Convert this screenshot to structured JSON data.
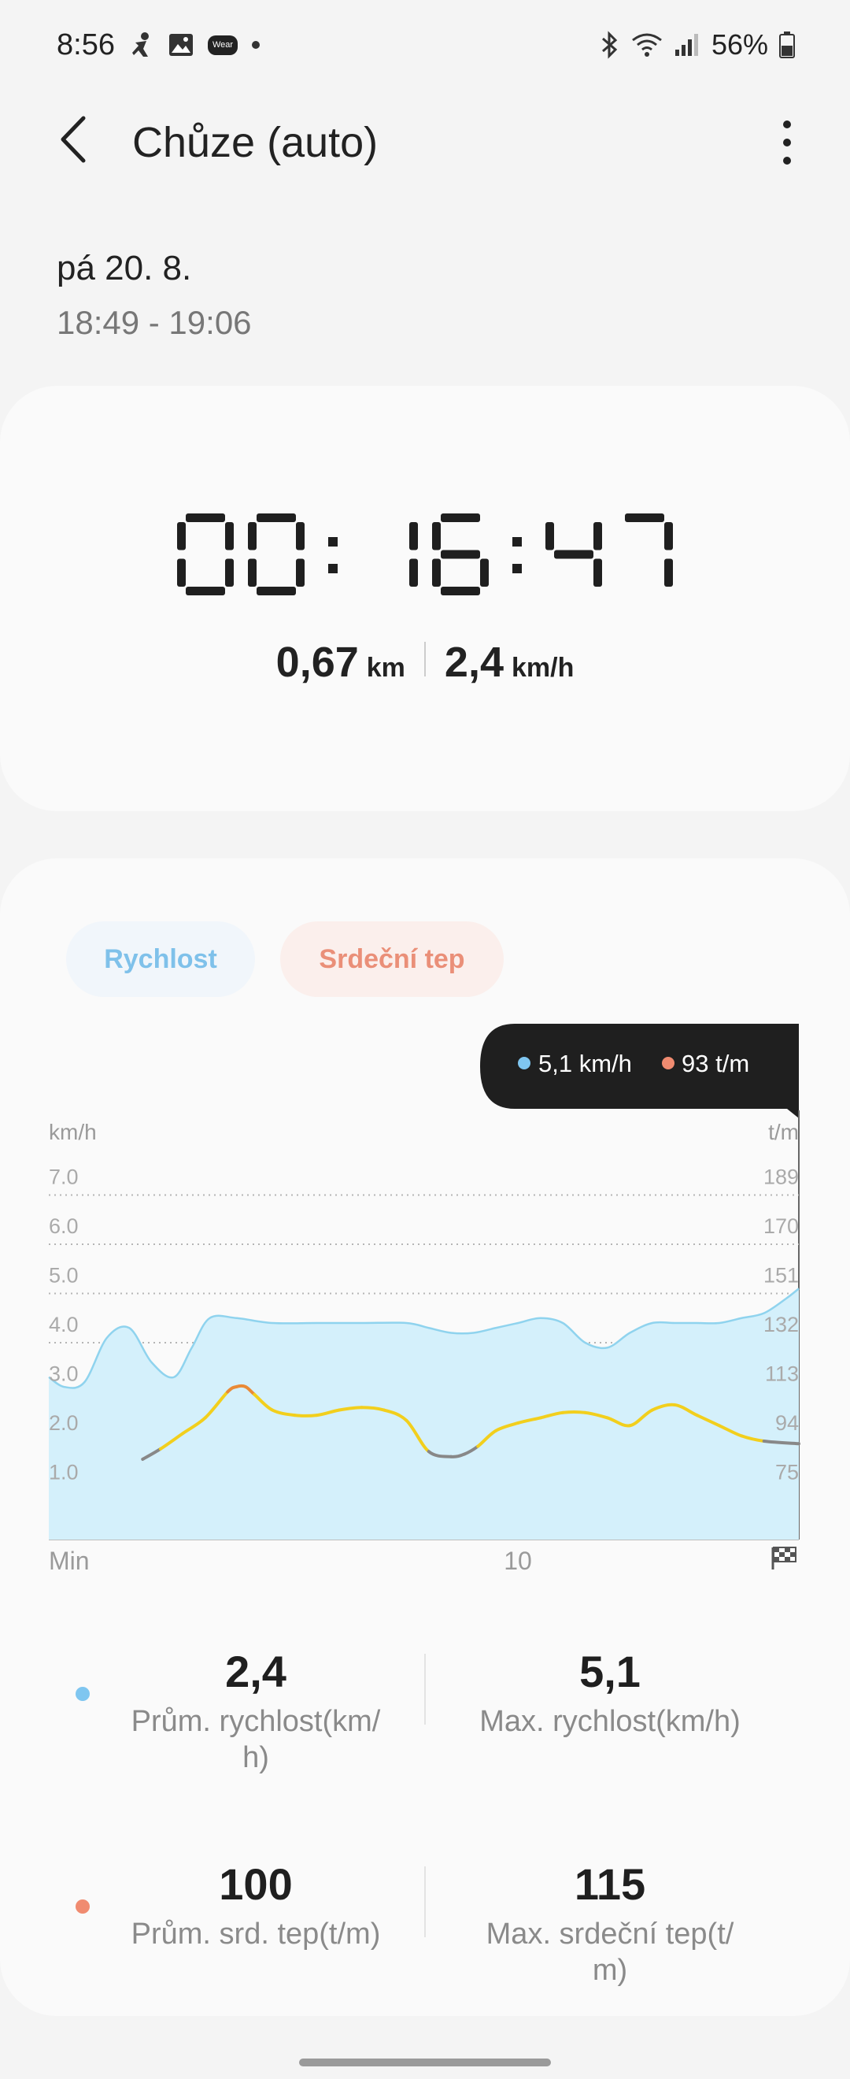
{
  "status": {
    "time": "8:56",
    "battery": "56%",
    "wear_label": "Wear"
  },
  "appbar": {
    "title": "Chůze (auto)"
  },
  "session": {
    "date": "pá 20. 8.",
    "time_range": "18:49 - 19:06"
  },
  "summary": {
    "duration": "00:16:47",
    "distance_value": "0,67",
    "distance_unit": "km",
    "speed_value": "2,4",
    "speed_unit": "km/h"
  },
  "chips": {
    "speed": "Rychlost",
    "heart_rate": "Srdeční tep"
  },
  "tooltip": {
    "speed": "5,1 km/h",
    "heart_rate": "93 t/m"
  },
  "colors": {
    "speed": "#7fc6f0",
    "heart_rate": "#f08b70",
    "hr_line": "#f2cf1d",
    "hr_low": "#888888",
    "hr_high": "#e98a36"
  },
  "chart_data": {
    "type": "area",
    "left_unit": "km/h",
    "right_unit": "t/m",
    "left_ticks": [
      "7.0",
      "6.0",
      "5.0",
      "4.0",
      "3.0",
      "2.0",
      "1.0"
    ],
    "right_ticks": [
      "189",
      "170",
      "151",
      "132",
      "113",
      "94",
      "75"
    ],
    "ylim_left": [
      0,
      7.7
    ],
    "x_labels": [
      "Min",
      "10"
    ],
    "x_range_min": [
      0,
      16.78
    ],
    "series": [
      {
        "name": "Rychlost",
        "unit": "km/h",
        "x": [
          0,
          0.35,
          0.8,
          1.3,
          1.8,
          2.3,
          2.8,
          3.2,
          3.6,
          4.2,
          5,
          6,
          7,
          8,
          8.5,
          9,
          9.5,
          10,
          10.5,
          11,
          11.5,
          12,
          12.5,
          13,
          13.5,
          14,
          14.5,
          15,
          15.5,
          16,
          16.5,
          16.78
        ],
        "values": [
          3.3,
          3.1,
          3.2,
          4.1,
          4.3,
          3.6,
          3.3,
          3.9,
          4.5,
          4.5,
          4.4,
          4.4,
          4.4,
          4.4,
          4.3,
          4.2,
          4.2,
          4.3,
          4.4,
          4.5,
          4.4,
          4.0,
          3.9,
          4.2,
          4.4,
          4.4,
          4.4,
          4.4,
          4.5,
          4.6,
          4.9,
          5.1
        ]
      },
      {
        "name": "Srdeční tep",
        "unit": "t/m",
        "x": [
          2.1,
          2.5,
          3,
          3.5,
          4,
          4.2,
          4.4,
          4.6,
          5,
          5.5,
          6,
          6.5,
          7,
          7.5,
          8,
          8.5,
          9,
          9.3,
          9.6,
          10,
          10.5,
          11,
          11.5,
          12,
          12.5,
          13,
          13.5,
          14,
          14.5,
          15,
          15.5,
          16,
          16.78
        ],
        "values": [
          87,
          91,
          97,
          103,
          113,
          115,
          115,
          112,
          106,
          104,
          104,
          106,
          107,
          106,
          102,
          90,
          88,
          89,
          92,
          98,
          101,
          103,
          105,
          105,
          103,
          100,
          106,
          108,
          104,
          100,
          96,
          94,
          93
        ]
      }
    ]
  },
  "stats": {
    "avg_speed_value": "2,4",
    "avg_speed_label": "Prům. rychlost(km/\nh)",
    "max_speed_value": "5,1",
    "max_speed_label": "Max. rychlost(km/h)",
    "avg_hr_value": "100",
    "avg_hr_label": "Prům. srd. tep(t/m)",
    "max_hr_value": "115",
    "max_hr_label": "Max. srdeční tep(t/\nm)"
  }
}
